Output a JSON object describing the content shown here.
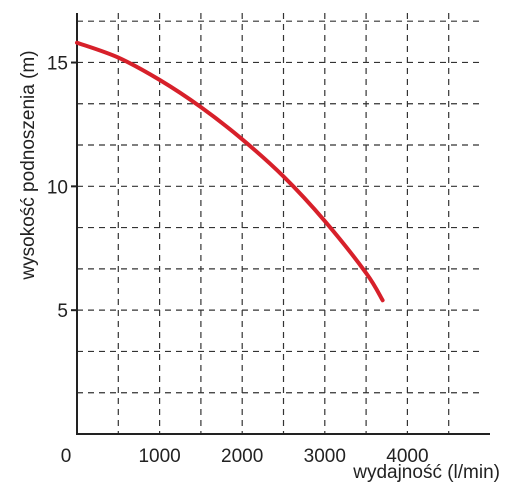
{
  "chart_data": {
    "type": "line",
    "title": "",
    "xlabel": "wydajność (l/min)",
    "ylabel": "wysokość podnoszenia (m)",
    "xlim": [
      0,
      5000
    ],
    "ylim": [
      0,
      17
    ],
    "x_ticks": [
      0,
      1000,
      2000,
      3000,
      4000
    ],
    "x_tick_labels": [
      "0",
      "1000",
      "2000",
      "3000",
      "4000"
    ],
    "y_ticks": [
      5,
      10,
      15
    ],
    "y_tick_labels": [
      "5",
      "10",
      "15"
    ],
    "grid": true,
    "grid_style": "dashed",
    "grid_x_step": 500,
    "grid_y_step": 1.667,
    "series": [
      {
        "color": "#d7202a",
        "x": [
          0,
          500,
          1000,
          1500,
          2000,
          2500,
          3000,
          3500,
          3700
        ],
        "y": [
          15.8,
          15.2,
          14.3,
          13.2,
          11.9,
          10.4,
          8.6,
          6.5,
          5.4
        ]
      }
    ]
  },
  "colors": {
    "axis": "#222222",
    "grid": "#333333",
    "curve": "#d7202a"
  }
}
